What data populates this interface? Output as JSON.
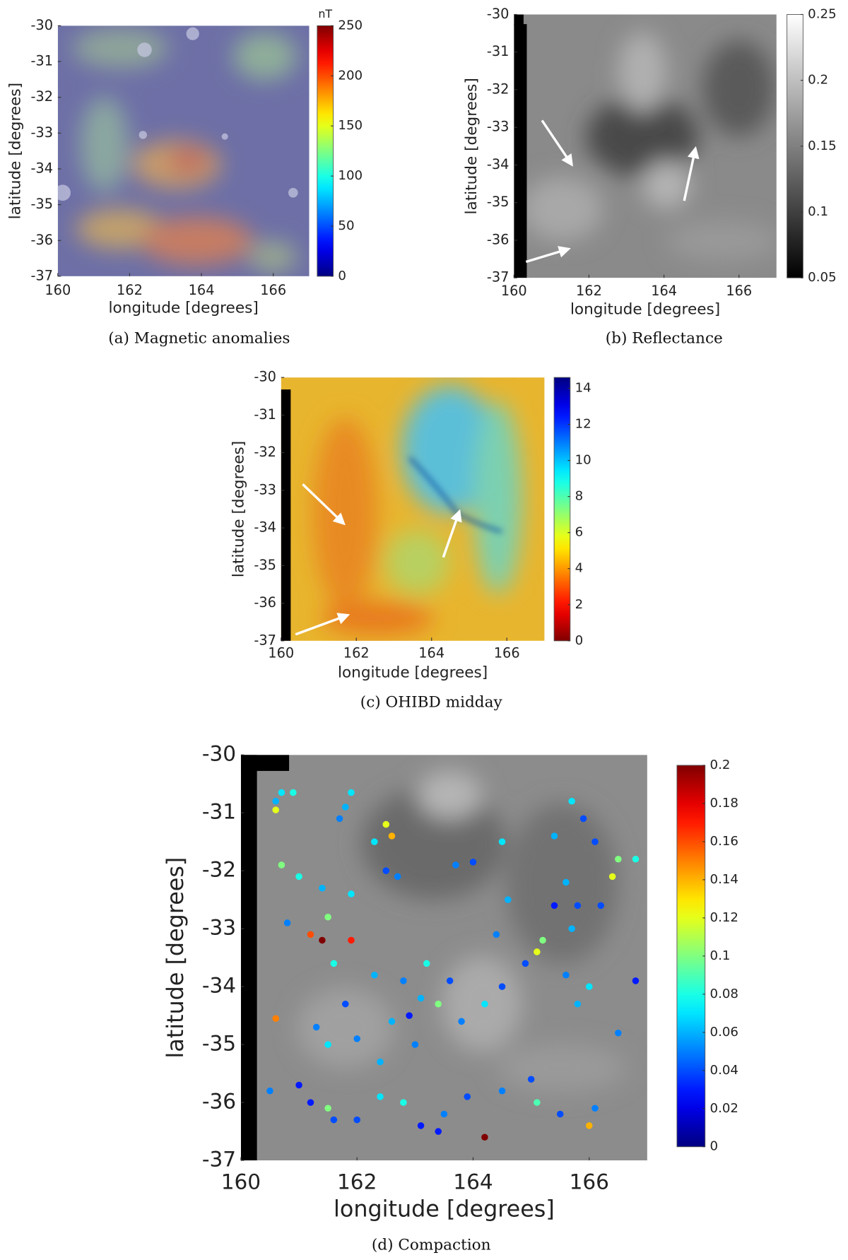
{
  "chart_data": [
    {
      "type": "heatmap",
      "caption": "(a) Magnetic anomalies",
      "xlabel": "longitude [degrees]",
      "ylabel": "latitude [degrees]",
      "xlim": [
        160,
        167
      ],
      "ylim": [
        -37,
        -30
      ],
      "xticks": [
        160,
        162,
        164,
        166
      ],
      "yticks": [
        -30,
        -31,
        -32,
        -33,
        -34,
        -35,
        -36,
        -37
      ],
      "colormap": "jet",
      "clim": [
        0,
        250
      ],
      "cticks": [
        0,
        50,
        100,
        150,
        200,
        250
      ],
      "colorbar_label": "nT"
    },
    {
      "type": "heatmap",
      "caption": "(b) Reflectance",
      "xlabel": "longitude [degrees]",
      "ylabel": "latitude [degrees]",
      "xlim": [
        160,
        167
      ],
      "ylim": [
        -37,
        -30
      ],
      "xticks": [
        160,
        162,
        164,
        166
      ],
      "yticks": [
        -30,
        -31,
        -32,
        -33,
        -34,
        -35,
        -36,
        -37
      ],
      "colormap": "gray",
      "clim": [
        0.05,
        0.25
      ],
      "cticks": [
        0.05,
        0.1,
        0.15,
        0.2,
        0.25
      ]
    },
    {
      "type": "heatmap",
      "caption": "(c) OHIBD midday",
      "xlabel": "longitude [degrees]",
      "ylabel": "latitude [degrees]",
      "xlim": [
        160,
        167
      ],
      "ylim": [
        -37,
        -30
      ],
      "xticks": [
        160,
        162,
        164,
        166
      ],
      "yticks": [
        -30,
        -31,
        -32,
        -33,
        -34,
        -35,
        -36,
        -37
      ],
      "colormap": "jet_reversed",
      "clim": [
        0,
        14.6
      ],
      "cticks": [
        0,
        2,
        4,
        6,
        8,
        10,
        12,
        14
      ]
    },
    {
      "type": "scatter",
      "caption": "(d) Compaction",
      "xlabel": "longitude [degrees]",
      "ylabel": "latitude [degrees]",
      "xlim": [
        160,
        167
      ],
      "ylim": [
        -37,
        -30
      ],
      "xticks": [
        160,
        162,
        164,
        166
      ],
      "yticks": [
        -30,
        -31,
        -32,
        -33,
        -34,
        -35,
        -36,
        -37
      ],
      "colormap": "jet",
      "clim": [
        0,
        0.2
      ],
      "cticks": [
        0,
        0.02,
        0.04,
        0.06,
        0.08,
        0.1,
        0.12,
        0.14,
        0.16,
        0.18,
        0.2
      ],
      "x": [
        160.7,
        160.9,
        160.6,
        160.6,
        161.9,
        161.8,
        161.7,
        162.5,
        162.6,
        162.3,
        162.5,
        162.7,
        160.7,
        161.0,
        161.4,
        161.9,
        160.8,
        161.5,
        161.2,
        161.4,
        161.9,
        161.6,
        162.3,
        162.8,
        163.2,
        163.6,
        163.1,
        162.9,
        163.4,
        163.8,
        164.2,
        164.5,
        161.8,
        161.3,
        160.6,
        161.5,
        162.0,
        162.4,
        162.6,
        161.0,
        160.5,
        161.2,
        161.5,
        161.6,
        162.4,
        162.8,
        163.1,
        163.5,
        163.9,
        164.2,
        164.5,
        165.0,
        165.1,
        165.5,
        166.0,
        166.1,
        165.2,
        165.1,
        164.9,
        165.6,
        166.0,
        165.8,
        166.8,
        166.5,
        165.4,
        165.7,
        165.9,
        166.1,
        166.5,
        166.4,
        166.8,
        165.6,
        165.4,
        165.8,
        166.2,
        165.7,
        163.7,
        164.0,
        164.5,
        164.4,
        164.6,
        163.4,
        162.0,
        163.0
      ],
      "y": [
        -30.65,
        -30.65,
        -30.95,
        -30.8,
        -30.65,
        -30.9,
        -31.1,
        -31.2,
        -31.4,
        -31.5,
        -32.0,
        -32.1,
        -31.9,
        -32.1,
        -32.3,
        -32.4,
        -32.9,
        -32.8,
        -33.1,
        -33.2,
        -33.2,
        -33.6,
        -33.8,
        -33.9,
        -33.6,
        -33.9,
        -34.2,
        -34.5,
        -34.3,
        -34.6,
        -34.3,
        -34.0,
        -34.3,
        -34.7,
        -34.55,
        -35.0,
        -34.9,
        -35.3,
        -34.6,
        -35.7,
        -35.8,
        -36.0,
        -36.1,
        -36.3,
        -35.9,
        -36.0,
        -36.4,
        -36.2,
        -35.9,
        -36.6,
        -35.8,
        -35.6,
        -36.0,
        -36.2,
        -36.4,
        -36.1,
        -33.2,
        -33.4,
        -33.6,
        -33.8,
        -34.0,
        -34.3,
        -33.9,
        -34.8,
        -31.4,
        -30.8,
        -31.1,
        -31.5,
        -31.8,
        -32.1,
        -31.8,
        -32.2,
        -32.6,
        -32.6,
        -32.6,
        -33.0,
        -31.9,
        -31.85,
        -31.5,
        -33.1,
        -32.5,
        -36.5,
        -36.3,
        -35.0
      ],
      "values": [
        0.07,
        0.08,
        0.12,
        0.06,
        0.07,
        0.06,
        0.05,
        0.12,
        0.14,
        0.07,
        0.04,
        0.05,
        0.1,
        0.08,
        0.06,
        0.07,
        0.05,
        0.1,
        0.16,
        0.2,
        0.17,
        0.08,
        0.06,
        0.05,
        0.08,
        0.04,
        0.06,
        0.03,
        0.1,
        0.05,
        0.07,
        0.04,
        0.04,
        0.05,
        0.15,
        0.07,
        0.05,
        0.06,
        0.06,
        0.03,
        0.05,
        0.03,
        0.1,
        0.04,
        0.07,
        0.08,
        0.03,
        0.05,
        0.04,
        0.2,
        0.05,
        0.04,
        0.09,
        0.04,
        0.14,
        0.05,
        0.1,
        0.12,
        0.04,
        0.05,
        0.07,
        0.06,
        0.03,
        0.05,
        0.06,
        0.07,
        0.04,
        0.04,
        0.1,
        0.12,
        0.08,
        0.06,
        0.03,
        0.04,
        0.04,
        0.06,
        0.05,
        0.04,
        0.07,
        0.05,
        0.06,
        0.03,
        0.04,
        0.05
      ]
    }
  ]
}
